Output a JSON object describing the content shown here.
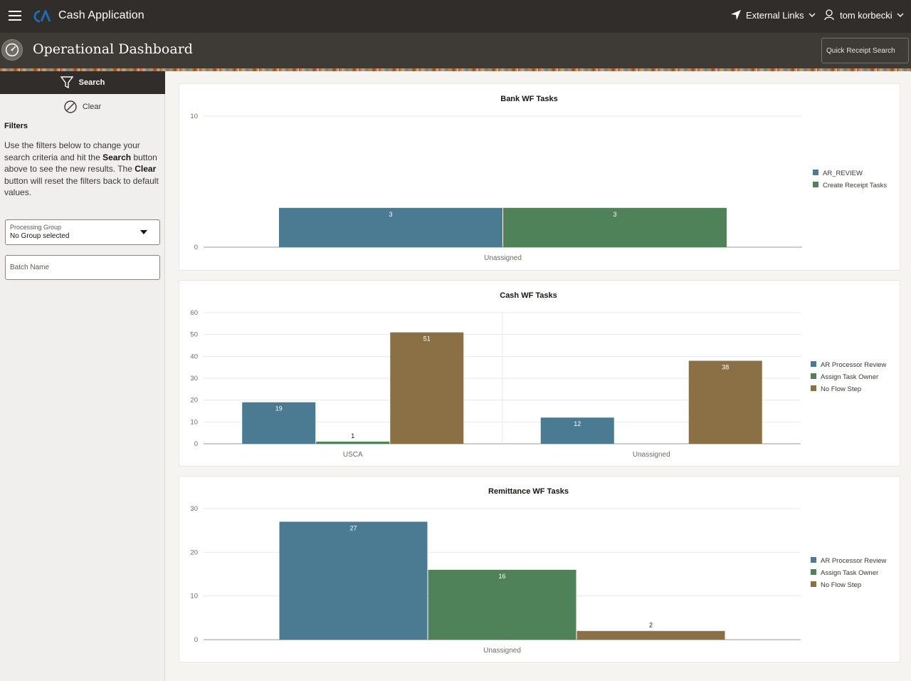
{
  "header": {
    "app_title": "Cash Application",
    "external_links": "External Links",
    "user_name": "tom korbecki"
  },
  "page": {
    "title": "Operational Dashboard",
    "quick_receipt_search": "Quick Receipt Search"
  },
  "sidebar": {
    "search_label": "Search",
    "clear_label": "Clear",
    "filters_title": "Filters",
    "help_part1": "Use the filters below to change your search criteria and hit the ",
    "help_search": "Search",
    "help_part2": " button above to see the new results. The ",
    "help_clear": "Clear",
    "help_part3": " button will reset the filters back to default values.",
    "processing_group_label": "Processing Group",
    "processing_group_value": "No Group selected",
    "batch_name_placeholder": "Batch Name"
  },
  "colors": {
    "blue": "#4a7b93",
    "green": "#508259",
    "brown": "#8a7044"
  },
  "chart_data": [
    {
      "type": "bar",
      "title": "Bank WF Tasks",
      "categories": [
        "Unassigned"
      ],
      "series": [
        {
          "name": "AR_REVIEW",
          "values": [
            3
          ],
          "color": "#4a7b93"
        },
        {
          "name": "Create Receipt Tasks",
          "values": [
            3
          ],
          "color": "#508259"
        }
      ],
      "yticks": [
        "0",
        "10"
      ],
      "ylim": [
        0,
        10
      ],
      "legend": "right"
    },
    {
      "type": "bar",
      "title": "Cash WF Tasks",
      "categories": [
        "USCA",
        "Unassigned"
      ],
      "series": [
        {
          "name": "AR Processor Review",
          "values": [
            19,
            12
          ],
          "color": "#4a7b93"
        },
        {
          "name": "Assign Task Owner",
          "values": [
            1,
            null
          ],
          "color": "#508259"
        },
        {
          "name": "No Flow Step",
          "values": [
            51,
            38
          ],
          "color": "#8a7044"
        }
      ],
      "yticks": [
        "0",
        "10",
        "20",
        "30",
        "40",
        "50",
        "60"
      ],
      "ylim": [
        0,
        60
      ],
      "legend": "right"
    },
    {
      "type": "bar",
      "title": "Remittance WF Tasks",
      "categories": [
        "Unassigned"
      ],
      "series": [
        {
          "name": "AR Processor Review",
          "values": [
            27
          ],
          "color": "#4a7b93"
        },
        {
          "name": "Assign Task Owner",
          "values": [
            16
          ],
          "color": "#508259"
        },
        {
          "name": "No Flow Step",
          "values": [
            2
          ],
          "color": "#8a7044"
        }
      ],
      "yticks": [
        "0",
        "10",
        "20",
        "30"
      ],
      "ylim": [
        0,
        30
      ],
      "legend": "right"
    }
  ]
}
